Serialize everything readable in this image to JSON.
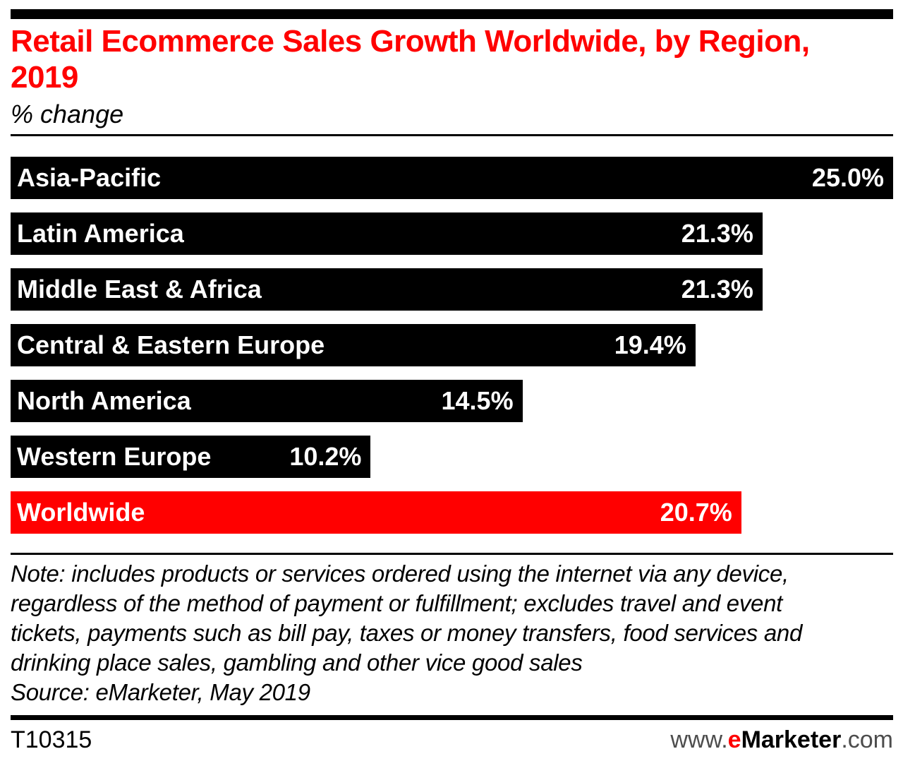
{
  "header": {
    "title": "Retail Ecommerce Sales Growth Worldwide, by Region, 2019",
    "subtitle": "% change"
  },
  "chart_data": {
    "type": "bar",
    "orientation": "horizontal",
    "title": "Retail Ecommerce Sales Growth Worldwide, by Region, 2019",
    "subtitle": "% change",
    "xlabel": "",
    "ylabel": "",
    "xlim": [
      0,
      25.0
    ],
    "grid": false,
    "categories": [
      "Asia-Pacific",
      "Latin America",
      "Middle East & Africa",
      "Central & Eastern Europe",
      "North America",
      "Western Europe",
      "Worldwide"
    ],
    "values": [
      25.0,
      21.3,
      21.3,
      19.4,
      14.5,
      10.2,
      20.7
    ],
    "value_labels": [
      "25.0%",
      "21.3%",
      "21.3%",
      "19.4%",
      "14.5%",
      "10.2%",
      "20.7%"
    ],
    "bar_colors": [
      "#000000",
      "#000000",
      "#000000",
      "#000000",
      "#000000",
      "#000000",
      "#ff0000"
    ],
    "highlight_category": "Worldwide"
  },
  "footer": {
    "note": "Note: includes products or services ordered using the internet via any device, regardless of the method of payment or fulfillment; excludes travel and event tickets, payments such as bill pay, taxes or money transfers, food services and drinking place sales, gambling and other vice good sales",
    "source": "Source: eMarketer, May 2019",
    "chart_id": "T10315",
    "site": {
      "prefix": "www.",
      "e": "e",
      "brand": "Marketer",
      "suffix": ".com"
    }
  },
  "colors": {
    "accent_red": "#ff0000",
    "bar_black": "#000000",
    "logo_gray": "#4d4d4d"
  }
}
